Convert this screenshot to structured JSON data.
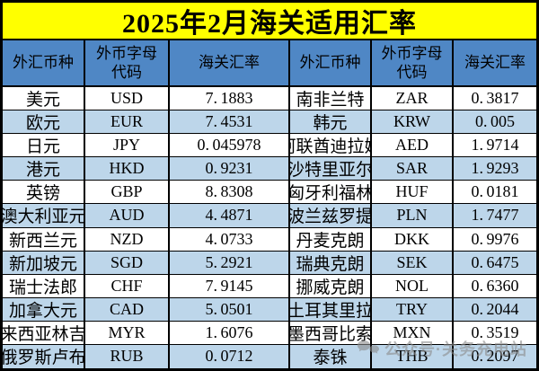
{
  "title": "2025年2月海关适用汇率",
  "table": {
    "headers": [
      "外汇币种",
      "外币字母代码",
      "海关汇率",
      "外汇币种",
      "外币字母代码",
      "海关汇率"
    ],
    "rows": [
      {
        "left": {
          "name": "美元",
          "code": "USD",
          "rate": "7.1883"
        },
        "right": {
          "name": "南非兰特",
          "code": "ZAR",
          "rate": "0.3817"
        }
      },
      {
        "left": {
          "name": "欧元",
          "code": "EUR",
          "rate": "7.4531"
        },
        "right": {
          "name": "韩元",
          "code": "KRW",
          "rate": "0.005"
        }
      },
      {
        "left": {
          "name": "日元",
          "code": "JPY",
          "rate": "0.045978"
        },
        "right": {
          "name": "阿联酋迪拉姆",
          "code": "AED",
          "rate": "1.9714"
        }
      },
      {
        "left": {
          "name": "港元",
          "code": "HKD",
          "rate": "0.9231"
        },
        "right": {
          "name": "沙特里亚尔",
          "code": "SAR",
          "rate": "1.9293"
        }
      },
      {
        "left": {
          "name": "英镑",
          "code": "GBP",
          "rate": "8.8308"
        },
        "right": {
          "name": "匈牙利福林",
          "code": "HUF",
          "rate": "0.0181"
        }
      },
      {
        "left": {
          "name": "澳大利亚元",
          "code": "AUD",
          "rate": "4.4871"
        },
        "right": {
          "name": "波兰兹罗提",
          "code": "PLN",
          "rate": "1.7477"
        }
      },
      {
        "left": {
          "name": "新西兰元",
          "code": "NZD",
          "rate": "4.0733"
        },
        "right": {
          "name": "丹麦克朗",
          "code": "DKK",
          "rate": "0.9976"
        }
      },
      {
        "left": {
          "name": "新加坡元",
          "code": "SGD",
          "rate": "5.2921"
        },
        "right": {
          "name": "瑞典克朗",
          "code": "SEK",
          "rate": "0.6475"
        }
      },
      {
        "left": {
          "name": "瑞士法郎",
          "code": "CHF",
          "rate": "7.9145"
        },
        "right": {
          "name": "挪威克朗",
          "code": "NOL",
          "rate": "0.6360"
        }
      },
      {
        "left": {
          "name": "加拿大元",
          "code": "CAD",
          "rate": "5.0501"
        },
        "right": {
          "name": "土耳其里拉",
          "code": "TRY",
          "rate": "0.2044"
        }
      },
      {
        "left": {
          "name": "马来西亚林吉特",
          "code": "MYR",
          "rate": "1.6076"
        },
        "right": {
          "name": "墨西哥比索",
          "code": "MXN",
          "rate": "0.3519"
        }
      },
      {
        "left": {
          "name": "俄罗斯卢布",
          "code": "RUB",
          "rate": "0.0712"
        },
        "right": {
          "name": "泰铢",
          "code": "THB",
          "rate": "0.2097"
        }
      }
    ]
  },
  "watermark": {
    "text": "公众号·关务充电站",
    "icon": "wechat-chat-bubbles-icon"
  },
  "colors": {
    "title_bg": "#FFFF00",
    "header_bg": "#4F87C5",
    "row_bg": "#FFFFFF",
    "row_alt_bg": "#BDD6EA",
    "border": "#000000",
    "watermark": "#8C8C8C"
  }
}
